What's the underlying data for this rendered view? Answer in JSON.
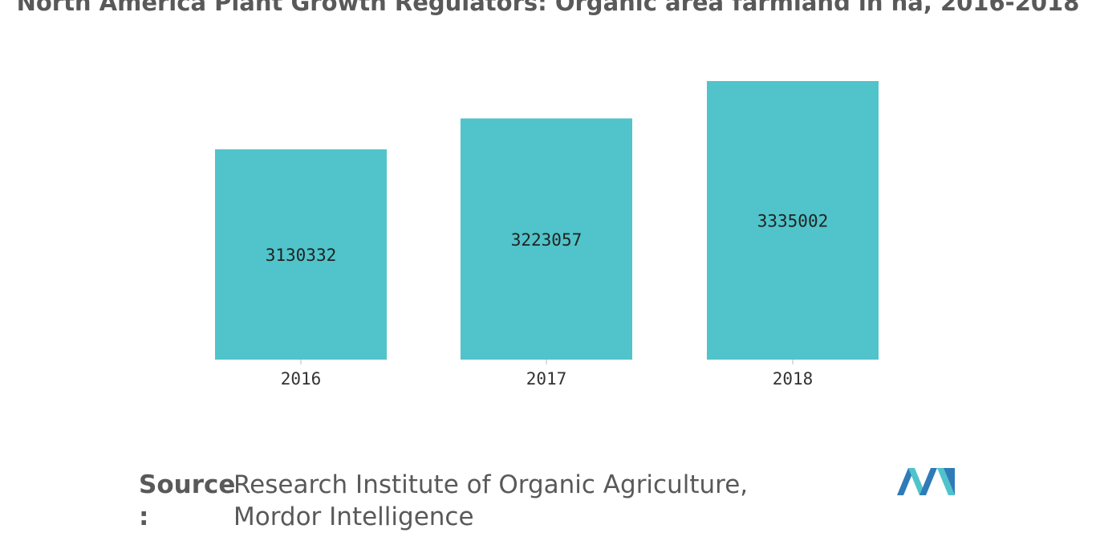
{
  "title": "North America Plant Growth Regulators: Organic area farmland in ha, 2016-2018",
  "source": {
    "label": "Source",
    "colon": ":",
    "text": "Research Institute of Organic Agriculture, Mordor Intelligence"
  },
  "colors": {
    "bar": "#50C4CA",
    "logo_dark": "#2E7BB8",
    "logo_light": "#4FC3CB"
  },
  "logo": {
    "icon": "mordor-intelligence-logo-icon"
  },
  "chart_data": {
    "type": "bar",
    "categories": [
      "2016",
      "2017",
      "2018"
    ],
    "values": [
      3130332,
      3223057,
      3335002
    ],
    "title": "North America Plant Growth Regulators: Organic area farmland in ha, 2016-2018",
    "xlabel": "",
    "ylabel": "",
    "grid": false,
    "legend": "none",
    "data_labels": [
      "3130332",
      "3223057",
      "3335002"
    ]
  }
}
